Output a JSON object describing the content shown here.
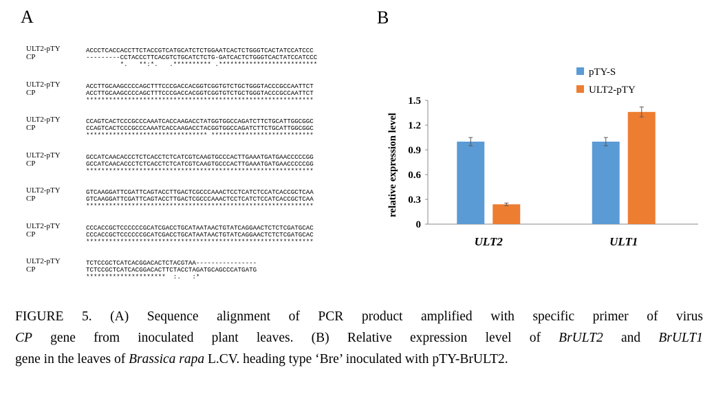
{
  "panel_a": {
    "label": "A",
    "blocks": [
      {
        "name1": "ULT2-pTY",
        "seq1": "ACCCTCACCACCTTCTACCGTCATGCATCTCTGGAATCACTCTGGGTCACTATCCATCCC",
        "name2": "CP",
        "seq2": "---------CCTACCCTTCACGTCTGCATCTCTG-GATCACTCTGGGTCACTATCCATCCC",
        "consensus": "         *.   **:*.   .********** .**************************"
      },
      {
        "name1": "ULT2-pTY",
        "seq1": "ACCTTGCAAGCCCCAGCTTTCCCGACCACGGTCGGTGTCTGCTGGGTACCCGCCAATTCT",
        "name2": "CP",
        "seq2": "ACCTTGCAAGCCCCAGCTTTCCCGACCACGGTCGGTGTCTGCTGGGTACCCGCCAATTCT",
        "consensus": "************************************************************"
      },
      {
        "name1": "ULT2-pTY",
        "seq1": "CCAGTCACTCCCGCCCAAATCACCAAGACCTATGGTGGCCAGATCTTCTGCATTGGCGGC",
        "name2": "CP",
        "seq2": "CCAGTCACTCCCGCCCAAATCACCAAGACCTACGGTGGCCAGATCTTCTGCATTGGCGGC",
        "consensus": "******************************** ***************************"
      },
      {
        "name1": "ULT2-pTY",
        "seq1": "GCCATCAACACCCTCTCACCTCTCATCGTCAAGTGCCCACTTGAAATGATGAACCCCCGG",
        "name2": "CP",
        "seq2": "GCCATCAACACCCTCTCACCTCTCATCGTCAAGTGCCCACTTGAAATGATGAACCCCCGG",
        "consensus": "************************************************************"
      },
      {
        "name1": "ULT2-pTY",
        "seq1": "GTCAAGGATTCGATTCAGTACCTTGACTCGCCCAAACTCCTCATCTCCATCACCGCTCAA",
        "name2": "CP",
        "seq2": "GTCAAGGATTCGATTCAGTACCTTGACTCGCCCAAACTCCTCATCTCCATCACCGCTCAA",
        "consensus": "************************************************************"
      },
      {
        "name1": "ULT2-pTY",
        "seq1": "CCCACCGCTCCCCCCGCATCGACCTGCATAATAACTGTATCAGGAACTCTCTCGATGCAC",
        "name2": "CP",
        "seq2": "CCCACCGCTCCCCCCGCATCGACCTGCATAATAACTGTATCAGGAACTCTCTCGATGCAC",
        "consensus": "************************************************************"
      },
      {
        "name1": "ULT2-pTY",
        "seq1": "TCTCCGCTCATCACGGACACTCTACGTAA----------------",
        "name2": "CP",
        "seq2": "TCTCCGCTCATCACGGACACTTCTACCTAGATGCAGCCCATGATG",
        "consensus": "*********************  :.   :*"
      }
    ]
  },
  "chart_data": {
    "type": "bar",
    "panel_label": "B",
    "y_label": "relative expression level",
    "categories": [
      "ULT2",
      "ULT1"
    ],
    "series": [
      {
        "name": "pTY-S",
        "color": "#5b9bd5",
        "values": [
          1.0,
          1.0
        ],
        "errors": [
          0.05,
          0.05
        ]
      },
      {
        "name": "ULT2-pTY",
        "color": "#ed7d31",
        "values": [
          0.24,
          1.36
        ],
        "errors": [
          0.015,
          0.06
        ]
      }
    ],
    "ylim": [
      0,
      1.5
    ],
    "yticks": [
      0,
      0.3,
      0.6,
      0.9,
      1.2,
      1.5
    ]
  },
  "caption": {
    "lines": [
      [
        {
          "text": "FIGURE 5. (A) Sequence alignment of PCR product amplified with specific primer of virus",
          "italic": false
        }
      ],
      [
        {
          "text": "CP",
          "italic": true
        },
        {
          "text": " gene from inoculated plant leaves. (B) Relative expression level of ",
          "italic": false
        },
        {
          "text": "BrULT2",
          "italic": true
        },
        {
          "text": " and ",
          "italic": false
        },
        {
          "text": "BrULT1",
          "italic": true
        }
      ],
      [
        {
          "text": "gene in the leaves of ",
          "italic": false
        },
        {
          "text": "Brassica rapa",
          "italic": true
        },
        {
          "text": " L.CV. heading type ‘Bre’ inoculated with pTY-BrULT2.",
          "italic": false
        }
      ]
    ]
  }
}
